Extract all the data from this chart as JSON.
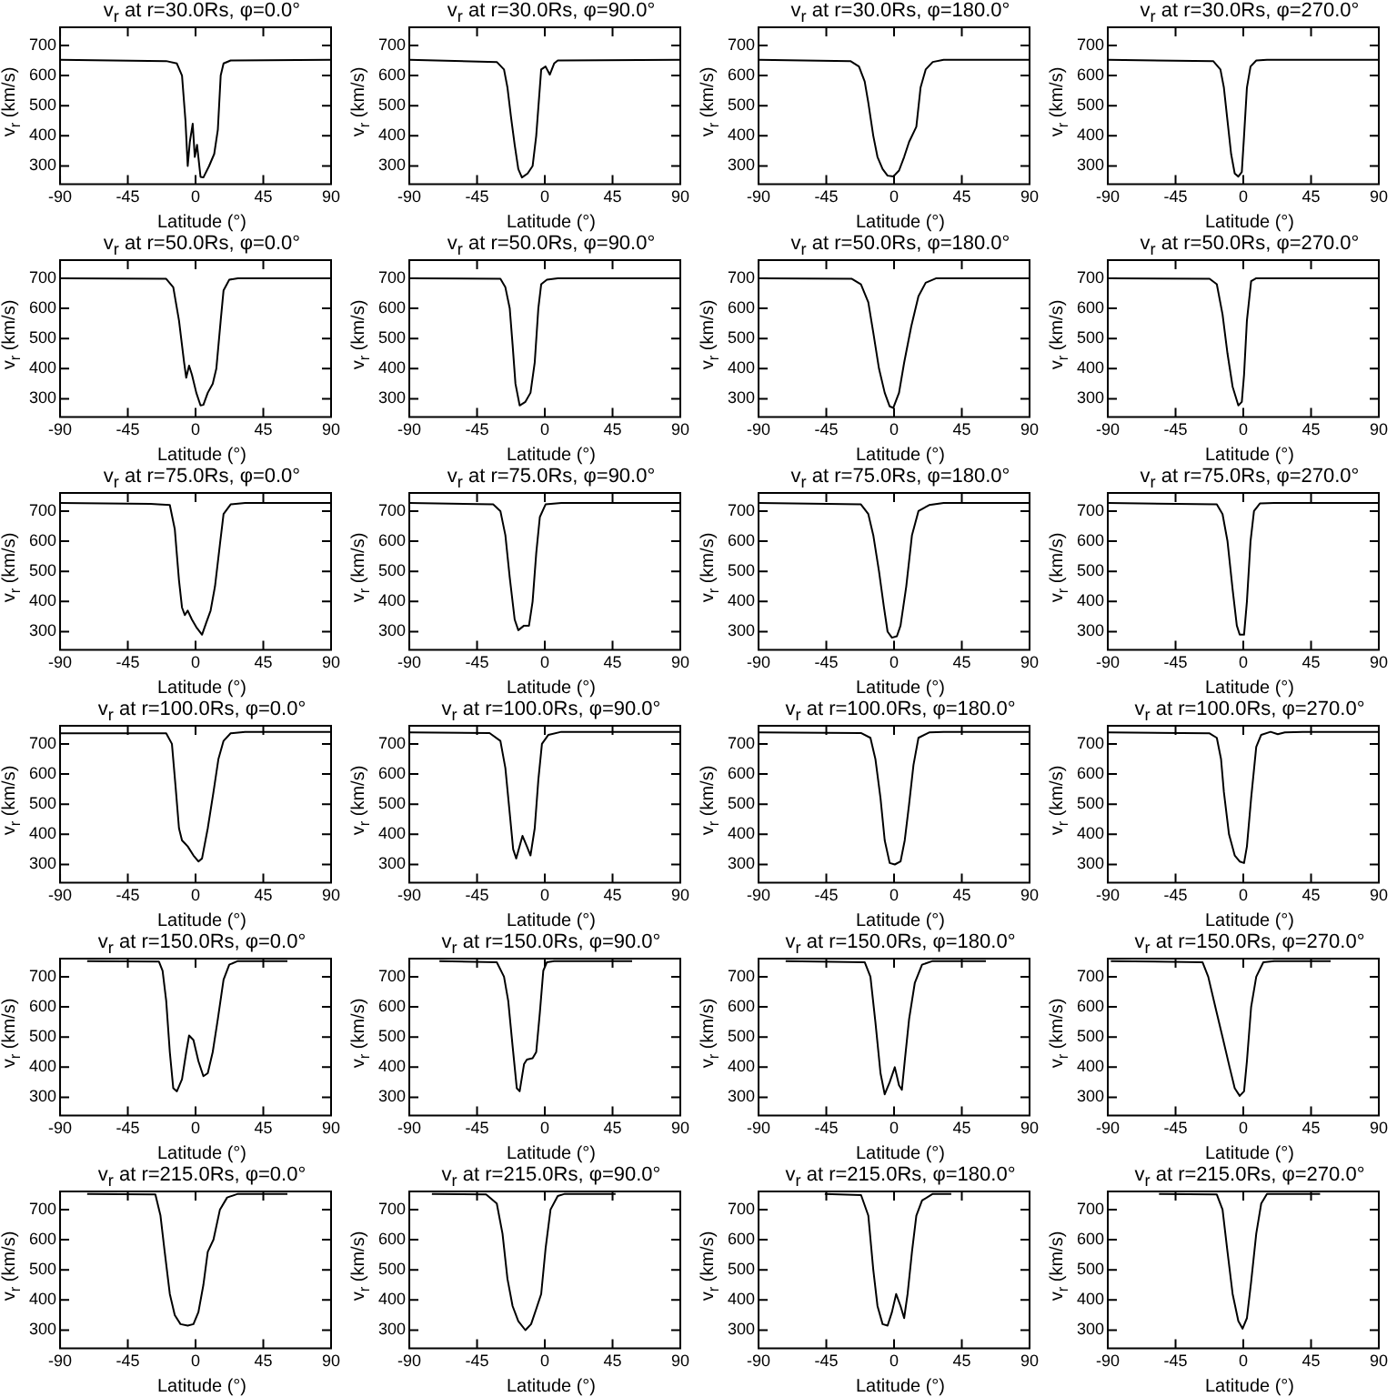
{
  "chart_data": [
    {
      "type": "line",
      "title": "v$_{r}$ at r=30.0Rs, φ=0.0°",
      "xlabel": "Latitude (°)",
      "ylabel": "v$_{r}$ (km/s)",
      "color": "#000000",
      "xlim": [
        -90,
        90
      ],
      "xticks": [
        -90,
        -45,
        0,
        45,
        90
      ],
      "ylim": [
        240,
        760
      ],
      "yticks": [
        300,
        400,
        500,
        600,
        700
      ],
      "x": [
        -90,
        -19.5,
        -12.4,
        -9,
        -6.7,
        -5.2,
        -3.8,
        -1.9,
        -0.5,
        1,
        3.3,
        5.2,
        9,
        12.4,
        14.8,
        16.7,
        18.6,
        23.3,
        90
      ],
      "values": [
        652,
        648,
        640,
        600,
        450,
        300,
        380,
        440,
        330,
        370,
        264,
        262,
        300,
        340,
        420,
        600,
        640,
        650,
        652
      ]
    },
    {
      "type": "line",
      "title": "v$_{r}$ at r=30.0Rs, φ=90.0°",
      "xlabel": "Latitude (°)",
      "ylabel": "v$_{r}$ (km/s)",
      "color": "#000000",
      "xlim": [
        -90,
        90
      ],
      "xticks": [
        -90,
        -45,
        0,
        45,
        90
      ],
      "ylim": [
        240,
        760
      ],
      "yticks": [
        300,
        400,
        500,
        600,
        700
      ],
      "x": [
        -90,
        -31.9,
        -27.1,
        -24.8,
        -22.4,
        -20,
        -17.6,
        -15.2,
        -11.4,
        -8.1,
        -5.7,
        -3.3,
        -2.4,
        0.5,
        3.3,
        6.2,
        8.6,
        90
      ],
      "values": [
        652,
        645,
        620,
        560,
        460,
        370,
        290,
        262,
        275,
        300,
        400,
        560,
        620,
        630,
        603,
        640,
        650,
        652
      ]
    },
    {
      "type": "line",
      "title": "v$_{r}$ at r=30.0Rs, φ=180.0°",
      "xlabel": "Latitude (°)",
      "ylabel": "v$_{r}$ (km/s)",
      "color": "#000000",
      "xlim": [
        -90,
        90
      ],
      "xticks": [
        -90,
        -45,
        0,
        45,
        90
      ],
      "ylim": [
        240,
        760
      ],
      "yticks": [
        300,
        400,
        500,
        600,
        700
      ],
      "x": [
        -90,
        -29,
        -23.3,
        -19.5,
        -17.1,
        -13.8,
        -11,
        -7.6,
        -4.3,
        -0.5,
        3.3,
        6.7,
        10,
        14.8,
        17.6,
        21,
        25.7,
        32.9,
        90
      ],
      "values": [
        652,
        648,
        630,
        580,
        510,
        400,
        330,
        290,
        268,
        265,
        285,
        330,
        380,
        430,
        560,
        620,
        645,
        652,
        652
      ]
    },
    {
      "type": "line",
      "title": "v$_{r}$ at r=30.0Rs, φ=270.0°",
      "xlabel": "Latitude (°)",
      "ylabel": "v$_{r}$ (km/s)",
      "color": "#000000",
      "xlim": [
        -90,
        90
      ],
      "xticks": [
        -90,
        -45,
        0,
        45,
        90
      ],
      "ylim": [
        240,
        760
      ],
      "yticks": [
        300,
        400,
        500,
        600,
        700
      ],
      "x": [
        -90,
        -20,
        -15.2,
        -12.9,
        -10.5,
        -8.1,
        -5.7,
        -3.3,
        -1,
        0.5,
        2.4,
        4.8,
        8.6,
        15.7,
        90
      ],
      "values": [
        652,
        648,
        620,
        560,
        450,
        340,
        275,
        265,
        280,
        400,
        560,
        630,
        650,
        652,
        652
      ]
    },
    {
      "type": "line",
      "title": "v$_{r}$ at r=50.0Rs, φ=0.0°",
      "xlabel": "Latitude (°)",
      "ylabel": "v$_{r}$ (km/s)",
      "color": "#000000",
      "xlim": [
        -90,
        90
      ],
      "xticks": [
        -90,
        -45,
        0,
        45,
        90
      ],
      "ylim": [
        240,
        760
      ],
      "yticks": [
        300,
        400,
        500,
        600,
        700
      ],
      "x": [
        -90,
        -19.5,
        -14.8,
        -11,
        -7.6,
        -6.2,
        -4.3,
        -2.4,
        0.5,
        3.3,
        5.2,
        8.1,
        11.4,
        13.8,
        16.7,
        18.6,
        22.4,
        28.1,
        90
      ],
      "values": [
        700,
        698,
        670,
        560,
        420,
        370,
        410,
        380,
        320,
        278,
        280,
        320,
        350,
        400,
        560,
        660,
        695,
        700,
        700
      ]
    },
    {
      "type": "line",
      "title": "v$_{r}$ at r=50.0Rs, φ=90.0°",
      "xlabel": "Latitude (°)",
      "ylabel": "v$_{r}$ (km/s)",
      "color": "#000000",
      "xlim": [
        -90,
        90
      ],
      "xticks": [
        -90,
        -45,
        0,
        45,
        90
      ],
      "ylim": [
        240,
        760
      ],
      "yticks": [
        300,
        400,
        500,
        600,
        700
      ],
      "x": [
        -90,
        -29.5,
        -26.2,
        -23.3,
        -21.4,
        -19.5,
        -16.7,
        -12.9,
        -9.5,
        -6.7,
        -4.3,
        -2.4,
        1.4,
        8.6,
        90
      ],
      "values": [
        700,
        698,
        670,
        600,
        480,
        350,
        278,
        290,
        320,
        420,
        600,
        680,
        695,
        700,
        700
      ]
    },
    {
      "type": "line",
      "title": "v$_{r}$ at r=50.0Rs, φ=180.0°",
      "xlabel": "Latitude (°)",
      "ylabel": "v$_{r}$ (km/s)",
      "color": "#000000",
      "xlim": [
        -90,
        90
      ],
      "xticks": [
        -90,
        -45,
        0,
        45,
        90
      ],
      "ylim": [
        240,
        760
      ],
      "yticks": [
        300,
        400,
        500,
        600,
        700
      ],
      "x": [
        -90,
        -28,
        -22,
        -17.1,
        -13.8,
        -10,
        -6.2,
        -2.9,
        -0.5,
        3.3,
        6.7,
        11.4,
        16.2,
        21,
        28.1,
        90
      ],
      "values": [
        700,
        698,
        680,
        620,
        520,
        400,
        320,
        275,
        270,
        320,
        420,
        540,
        640,
        685,
        700,
        700
      ]
    },
    {
      "type": "line",
      "title": "v$_{r}$ at r=50.0Rs, φ=270.0°",
      "xlabel": "Latitude (°)",
      "ylabel": "v$_{r}$ (km/s)",
      "color": "#000000",
      "xlim": [
        -90,
        90
      ],
      "xticks": [
        -90,
        -45,
        0,
        45,
        90
      ],
      "ylim": [
        240,
        760
      ],
      "yticks": [
        300,
        400,
        500,
        600,
        700
      ],
      "x": [
        -90,
        -22.4,
        -17.6,
        -13.8,
        -10.5,
        -7.1,
        -3.3,
        -1,
        0.5,
        2.4,
        5.2,
        8.6,
        90
      ],
      "values": [
        700,
        698,
        680,
        580,
        450,
        340,
        278,
        290,
        380,
        560,
        690,
        700,
        700
      ]
    },
    {
      "type": "line",
      "title": "v$_{r}$ at r=75.0Rs, φ=0.0°",
      "xlabel": "Latitude (°)",
      "ylabel": "v$_{r}$ (km/s)",
      "color": "#000000",
      "xlim": [
        -90,
        90
      ],
      "xticks": [
        -90,
        -45,
        0,
        45,
        90
      ],
      "ylim": [
        240,
        760
      ],
      "yticks": [
        300,
        400,
        500,
        600,
        700
      ],
      "x": [
        -90,
        -30,
        -17.1,
        -13.8,
        -11,
        -9,
        -7.1,
        -5.2,
        -2.4,
        0.5,
        4.3,
        7.1,
        10,
        12.9,
        16.2,
        18.6,
        23.3,
        32.9,
        90
      ],
      "values": [
        727,
        724,
        720,
        640,
        470,
        380,
        355,
        370,
        340,
        315,
        290,
        330,
        370,
        450,
        590,
        690,
        722,
        727,
        727
      ]
    },
    {
      "type": "line",
      "title": "v$_{r}$ at r=75.0Rs, φ=90.0°",
      "xlabel": "Latitude (°)",
      "ylabel": "v$_{r}$ (km/s)",
      "color": "#000000",
      "xlim": [
        -90,
        90
      ],
      "xticks": [
        -90,
        -45,
        0,
        45,
        90
      ],
      "ylim": [
        240,
        760
      ],
      "yticks": [
        300,
        400,
        500,
        600,
        700
      ],
      "x": [
        -90,
        -34.3,
        -29.5,
        -26.2,
        -23.3,
        -20,
        -17.6,
        -13.8,
        -10.5,
        -8.1,
        -5.7,
        -3.3,
        0.5,
        11,
        90
      ],
      "values": [
        727,
        722,
        700,
        620,
        480,
        340,
        305,
        320,
        320,
        400,
        560,
        680,
        722,
        727,
        727
      ]
    },
    {
      "type": "line",
      "title": "v$_{r}$ at r=75.0Rs, φ=180.0°",
      "xlabel": "Latitude (°)",
      "ylabel": "v$_{r}$ (km/s)",
      "color": "#000000",
      "xlim": [
        -90,
        90
      ],
      "xticks": [
        -90,
        -45,
        0,
        45,
        90
      ],
      "ylim": [
        240,
        760
      ],
      "yticks": [
        300,
        400,
        500,
        600,
        700
      ],
      "x": [
        -90,
        -22,
        -17.1,
        -13.8,
        -10,
        -6.7,
        -4.3,
        -1.4,
        1.9,
        4.3,
        8.1,
        11.9,
        16.2,
        23.3,
        32.9,
        90
      ],
      "values": [
        727,
        722,
        690,
        620,
        500,
        380,
        300,
        280,
        285,
        320,
        450,
        620,
        700,
        720,
        727,
        727
      ]
    },
    {
      "type": "line",
      "title": "v$_{r}$ at r=75.0Rs, φ=270.0°",
      "xlabel": "Latitude (°)",
      "ylabel": "v$_{r}$ (km/s)",
      "color": "#000000",
      "xlim": [
        -90,
        90
      ],
      "xticks": [
        -90,
        -45,
        0,
        45,
        90
      ],
      "ylim": [
        240,
        760
      ],
      "yticks": [
        300,
        400,
        500,
        600,
        700
      ],
      "x": [
        -90,
        -17.6,
        -13.8,
        -10.5,
        -7.1,
        -4.3,
        -2.4,
        0.5,
        2.4,
        4.8,
        7.1,
        11,
        20.5,
        90
      ],
      "values": [
        727,
        722,
        690,
        600,
        440,
        320,
        290,
        290,
        400,
        600,
        700,
        725,
        727,
        727
      ]
    },
    {
      "type": "line",
      "title": "v$_{r}$ at r=100.0Rs, φ=0.0°",
      "xlabel": "Latitude (°)",
      "ylabel": "v$_{r}$ (km/s)",
      "color": "#000000",
      "xlim": [
        -90,
        90
      ],
      "xticks": [
        -90,
        -45,
        0,
        45,
        90
      ],
      "ylim": [
        240,
        760
      ],
      "yticks": [
        300,
        400,
        500,
        600,
        700
      ],
      "x": [
        -90,
        -19.5,
        -15.7,
        -13.3,
        -11,
        -9,
        -7.1,
        -5.2,
        -1.4,
        1.9,
        4.3,
        8.1,
        11.9,
        15.2,
        18.6,
        23.3,
        32.9,
        90
      ],
      "values": [
        735,
        735,
        700,
        560,
        420,
        380,
        370,
        360,
        330,
        310,
        320,
        420,
        540,
        650,
        710,
        735,
        740,
        740
      ]
    },
    {
      "type": "line",
      "title": "v$_{r}$ at r=100.0Rs, φ=90.0°",
      "xlabel": "Latitude (°)",
      "ylabel": "v$_{r}$ (km/s)",
      "color": "#000000",
      "xlim": [
        -90,
        90
      ],
      "xticks": [
        -90,
        -45,
        0,
        45,
        90
      ],
      "ylim": [
        240,
        760
      ],
      "yticks": [
        300,
        400,
        500,
        600,
        700
      ],
      "x": [
        -90,
        -36.7,
        -29.5,
        -26.2,
        -23.3,
        -21,
        -19,
        -16.2,
        -14.8,
        -11.9,
        -9.5,
        -6.7,
        -4.3,
        -1.9,
        2.4,
        11,
        90
      ],
      "values": [
        738,
        736,
        710,
        620,
        470,
        350,
        320,
        370,
        395,
        360,
        330,
        420,
        580,
        700,
        730,
        740,
        740
      ]
    },
    {
      "type": "line",
      "title": "v$_{r}$ at r=100.0Rs, φ=180.0°",
      "xlabel": "Latitude (°)",
      "ylabel": "v$_{r}$ (km/s)",
      "color": "#000000",
      "xlim": [
        -90,
        90
      ],
      "xticks": [
        -90,
        -45,
        0,
        45,
        90
      ],
      "ylim": [
        240,
        760
      ],
      "yticks": [
        300,
        400,
        500,
        600,
        700
      ],
      "x": [
        -90,
        -22,
        -15.7,
        -12.4,
        -9,
        -6.2,
        -2.9,
        0.5,
        4.3,
        7.1,
        10,
        12.9,
        16.2,
        23.3,
        32.9,
        90
      ],
      "values": [
        738,
        736,
        720,
        650,
        520,
        380,
        305,
        300,
        310,
        380,
        500,
        630,
        720,
        738,
        740,
        740
      ]
    },
    {
      "type": "line",
      "title": "v$_{r}$ at r=100.0Rs, φ=270.0°",
      "xlabel": "Latitude (°)",
      "ylabel": "v$_{r}$ (km/s)",
      "color": "#000000",
      "xlim": [
        -90,
        90
      ],
      "xticks": [
        -90,
        -45,
        0,
        45,
        90
      ],
      "ylim": [
        240,
        760
      ],
      "yticks": [
        300,
        400,
        500,
        600,
        700
      ],
      "x": [
        -90,
        -22.4,
        -17.6,
        -14.8,
        -12.9,
        -9.5,
        -5.7,
        -2.4,
        0.5,
        2.4,
        5.2,
        8.6,
        11.9,
        18.1,
        22.9,
        27.6,
        39.5,
        90
      ],
      "values": [
        738,
        735,
        720,
        650,
        540,
        400,
        330,
        310,
        305,
        360,
        520,
        690,
        730,
        740,
        732,
        738,
        740,
        740
      ]
    },
    {
      "type": "line",
      "title": "v$_{r}$ at r=150.0Rs, φ=0.0°",
      "xlabel": "Latitude (°)",
      "ylabel": "v$_{r}$ (km/s)",
      "color": "#000000",
      "xlim": [
        -90,
        90
      ],
      "xticks": [
        -90,
        -45,
        0,
        45,
        90
      ],
      "ylim": [
        240,
        760
      ],
      "yticks": [
        300,
        400,
        500,
        600,
        700
      ],
      "x": [
        -72,
        -24.3,
        -21.9,
        -19.5,
        -17.1,
        -14.8,
        -12.4,
        -9,
        -6.2,
        -4.3,
        -1.4,
        1.9,
        5.2,
        8.1,
        11.4,
        14.8,
        18.6,
        22.4,
        28.1,
        61
      ],
      "values": [
        752,
        750,
        720,
        620,
        450,
        330,
        320,
        360,
        450,
        505,
        490,
        420,
        370,
        380,
        450,
        560,
        690,
        740,
        752,
        752
      ]
    },
    {
      "type": "line",
      "title": "v$_{r}$ at r=150.0Rs, φ=90.0°",
      "xlabel": "Latitude (°)",
      "ylabel": "v$_{r}$ (km/s)",
      "color": "#000000",
      "xlim": [
        -90,
        90
      ],
      "xticks": [
        -90,
        -45,
        0,
        45,
        90
      ],
      "ylim": [
        240,
        760
      ],
      "yticks": [
        300,
        400,
        500,
        600,
        700
      ],
      "x": [
        -70,
        -31.9,
        -27.1,
        -24.3,
        -21.4,
        -18.6,
        -16.7,
        -13.8,
        -11.9,
        -8.1,
        -5.7,
        -3.3,
        -1,
        1.4,
        6.2,
        58
      ],
      "values": [
        752,
        748,
        700,
        620,
        470,
        330,
        320,
        410,
        425,
        430,
        450,
        580,
        720,
        748,
        752,
        752
      ]
    },
    {
      "type": "line",
      "title": "v$_{r}$ at r=150.0Rs, φ=180.0°",
      "xlabel": "Latitude (°)",
      "ylabel": "v$_{r}$ (km/s)",
      "color": "#000000",
      "xlim": [
        -90,
        90
      ],
      "xticks": [
        -90,
        -45,
        0,
        45,
        90
      ],
      "ylim": [
        240,
        760
      ],
      "yticks": [
        300,
        400,
        500,
        600,
        700
      ],
      "x": [
        -72,
        -19.5,
        -15.7,
        -12.4,
        -9,
        -6.2,
        -2.9,
        0.5,
        3.3,
        5.2,
        7.1,
        10,
        13.8,
        18.6,
        25.7,
        61
      ],
      "values": [
        752,
        748,
        700,
        550,
        380,
        310,
        350,
        400,
        340,
        325,
        420,
        560,
        680,
        740,
        752,
        752
      ]
    },
    {
      "type": "line",
      "title": "v$_{r}$ at r=150.0Rs, φ=270.0°",
      "xlabel": "Latitude (°)",
      "ylabel": "v$_{r}$ (km/s)",
      "color": "#000000",
      "xlim": [
        -90,
        90
      ],
      "xticks": [
        -90,
        -45,
        0,
        45,
        90
      ],
      "ylim": [
        240,
        760
      ],
      "yticks": [
        300,
        400,
        500,
        600,
        700
      ],
      "x": [
        -88,
        -27.1,
        -23.3,
        -18.6,
        -13.8,
        -9.1,
        -5.7,
        -2.4,
        0.5,
        2.4,
        5.2,
        8.6,
        13.3,
        20.5,
        58
      ],
      "values": [
        752,
        748,
        700,
        600,
        500,
        400,
        330,
        305,
        320,
        420,
        600,
        700,
        748,
        752,
        752
      ]
    },
    {
      "type": "line",
      "title": "v$_{r}$ at r=215.0Rs, φ=0.0°",
      "xlabel": "Latitude (°)",
      "ylabel": "v$_{r}$ (km/s)",
      "color": "#000000",
      "xlim": [
        -90,
        90
      ],
      "xticks": [
        -90,
        -45,
        0,
        45,
        90
      ],
      "ylim": [
        240,
        760
      ],
      "yticks": [
        300,
        400,
        500,
        600,
        700
      ],
      "x": [
        -72,
        -26.7,
        -23.3,
        -20.5,
        -17.1,
        -13.8,
        -10,
        -5.2,
        -1.4,
        1.9,
        5.2,
        8.1,
        11.9,
        16.2,
        21,
        28.1,
        61
      ],
      "values": [
        752,
        750,
        680,
        560,
        420,
        350,
        320,
        315,
        320,
        360,
        450,
        560,
        600,
        700,
        740,
        752,
        752
      ]
    },
    {
      "type": "line",
      "title": "v$_{r}$ at r=215.0Rs, φ=90.0°",
      "xlabel": "Latitude (°)",
      "ylabel": "v$_{r}$ (km/s)",
      "color": "#000000",
      "xlim": [
        -90,
        90
      ],
      "xticks": [
        -90,
        -45,
        0,
        45,
        90
      ],
      "ylim": [
        240,
        760
      ],
      "yticks": [
        300,
        400,
        500,
        600,
        700
      ],
      "x": [
        -75,
        -39,
        -31.9,
        -28.1,
        -24.8,
        -21.4,
        -17.6,
        -12.9,
        -9.1,
        -5.7,
        -2.4,
        0.5,
        3.8,
        8.6,
        13.3,
        47
      ],
      "values": [
        752,
        750,
        720,
        620,
        470,
        380,
        330,
        300,
        320,
        370,
        420,
        570,
        700,
        745,
        752,
        752
      ]
    },
    {
      "type": "line",
      "title": "v$_{r}$ at r=215.0Rs, φ=180.0°",
      "xlabel": "Latitude (°)",
      "ylabel": "v$_{r}$ (km/s)",
      "color": "#000000",
      "xlim": [
        -90,
        90
      ],
      "xticks": [
        -90,
        -45,
        0,
        45,
        90
      ],
      "ylim": [
        240,
        760
      ],
      "yticks": [
        300,
        400,
        500,
        600,
        700
      ],
      "x": [
        -46,
        -21.9,
        -17.1,
        -13.8,
        -11,
        -7.6,
        -4.3,
        -1.4,
        1.4,
        4.3,
        6.7,
        9,
        11.9,
        14.8,
        18.6,
        25.7,
        38
      ],
      "values": [
        752,
        748,
        680,
        500,
        380,
        320,
        315,
        360,
        420,
        380,
        340,
        420,
        560,
        680,
        730,
        752,
        752
      ]
    },
    {
      "type": "line",
      "title": "v$_{r}$ at r=215.0Rs, φ=270.0°",
      "xlabel": "Latitude (°)",
      "ylabel": "v$_{r}$ (km/s)",
      "color": "#000000",
      "xlim": [
        -90,
        90
      ],
      "xticks": [
        -90,
        -45,
        0,
        45,
        90
      ],
      "ylim": [
        240,
        760
      ],
      "yticks": [
        300,
        400,
        500,
        600,
        700
      ],
      "x": [
        -56,
        -17.6,
        -13.8,
        -10.5,
        -7.1,
        -3.3,
        -0.5,
        2.4,
        5.2,
        8.6,
        11.9,
        15.7,
        51
      ],
      "values": [
        752,
        750,
        700,
        560,
        420,
        330,
        305,
        340,
        460,
        620,
        720,
        752,
        752
      ]
    }
  ]
}
